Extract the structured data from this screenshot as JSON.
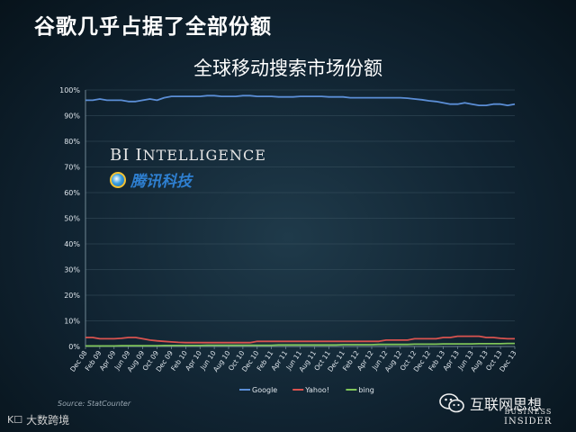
{
  "slide_title": "谷歌几乎占据了全部份额",
  "watermarks": {
    "bi_intelligence": "BI Intelligence",
    "tencent": "腾讯科技",
    "wechat": "互联网思想",
    "bottom_left": "大数跨境",
    "business_insider_l1": "BUSINESS",
    "business_insider_l2": "INSIDER"
  },
  "source": "Source: StatCounter",
  "colors": {
    "google": "#5b8ed6",
    "yahoo": "#d9534f",
    "bing": "#7fc45a",
    "axis_text": "#dfe6ec"
  },
  "chart_data": {
    "type": "line",
    "title": "全球移动搜索市场份额",
    "xlabel": "",
    "ylabel": "",
    "ylim": [
      0,
      100
    ],
    "y_ticks": [
      "0%",
      "10%",
      "20%",
      "30%",
      "40%",
      "50%",
      "60%",
      "70%",
      "80%",
      "90%",
      "100%"
    ],
    "x_tick_labels": [
      "Dec 08",
      "Feb 09",
      "Apr 09",
      "Jun 09",
      "Aug 09",
      "Oct 09",
      "Dec 09",
      "Feb 10",
      "Apr 10",
      "Jun 10",
      "Aug 10",
      "Oct 10",
      "Dec 10",
      "Feb 11",
      "Apr 11",
      "Jun 11",
      "Aug 11",
      "Oct 11",
      "Dec 11",
      "Feb 12",
      "Apr 12",
      "Jun 12",
      "Aug 12",
      "Oct 12",
      "Dec 12",
      "Feb 13",
      "Apr 13",
      "Jun 13",
      "Aug 13",
      "Oct 13",
      "Dec 13"
    ],
    "grid": true,
    "legend_position": "bottom",
    "series": [
      {
        "name": "Google",
        "values": [
          96,
          96,
          96.5,
          96,
          96,
          96,
          95.5,
          95.5,
          96,
          96.5,
          96,
          97,
          97.5,
          97.5,
          97.5,
          97.5,
          97.5,
          97.8,
          97.8,
          97.5,
          97.5,
          97.5,
          97.8,
          97.8,
          97.5,
          97.5,
          97.5,
          97.3,
          97.3,
          97.3,
          97.5,
          97.5,
          97.5,
          97.5,
          97.3,
          97.3,
          97.3,
          97,
          97,
          97,
          97,
          97,
          97,
          97,
          97,
          96.8,
          96.5,
          96.2,
          95.8,
          95.5,
          95,
          94.5,
          94.5,
          95,
          94.5,
          94,
          94,
          94.5,
          94.5,
          94,
          94.5
        ]
      },
      {
        "name": "Yahoo!",
        "values": [
          3.5,
          3.5,
          3,
          3,
          3,
          3.2,
          3.5,
          3.5,
          3,
          2.5,
          2.2,
          2,
          1.8,
          1.6,
          1.5,
          1.5,
          1.5,
          1.5,
          1.5,
          1.5,
          1.5,
          1.5,
          1.5,
          1.5,
          2,
          2,
          2,
          2,
          2,
          2,
          2,
          2,
          2,
          2,
          2,
          2,
          2,
          2,
          2,
          2,
          2,
          2,
          2.5,
          2.5,
          2.5,
          2.5,
          3,
          3,
          3,
          3,
          3.5,
          3.5,
          4,
          4,
          4,
          4,
          3.5,
          3.5,
          3.2,
          3,
          3
        ]
      },
      {
        "name": "bing",
        "values": [
          0.2,
          0.2,
          0.2,
          0.2,
          0.2,
          0.3,
          0.3,
          0.3,
          0.3,
          0.3,
          0.3,
          0.4,
          0.4,
          0.4,
          0.4,
          0.4,
          0.4,
          0.5,
          0.5,
          0.5,
          0.5,
          0.5,
          0.5,
          0.5,
          0.5,
          0.5,
          0.5,
          0.6,
          0.6,
          0.6,
          0.6,
          0.6,
          0.6,
          0.6,
          0.6,
          0.6,
          0.7,
          0.7,
          0.7,
          0.7,
          0.7,
          0.8,
          0.8,
          0.8,
          0.8,
          0.8,
          0.9,
          0.9,
          0.9,
          0.9,
          1,
          1,
          1,
          1,
          1,
          1.1,
          1.1,
          1.1,
          1.1,
          1.2,
          1.2
        ]
      }
    ]
  }
}
